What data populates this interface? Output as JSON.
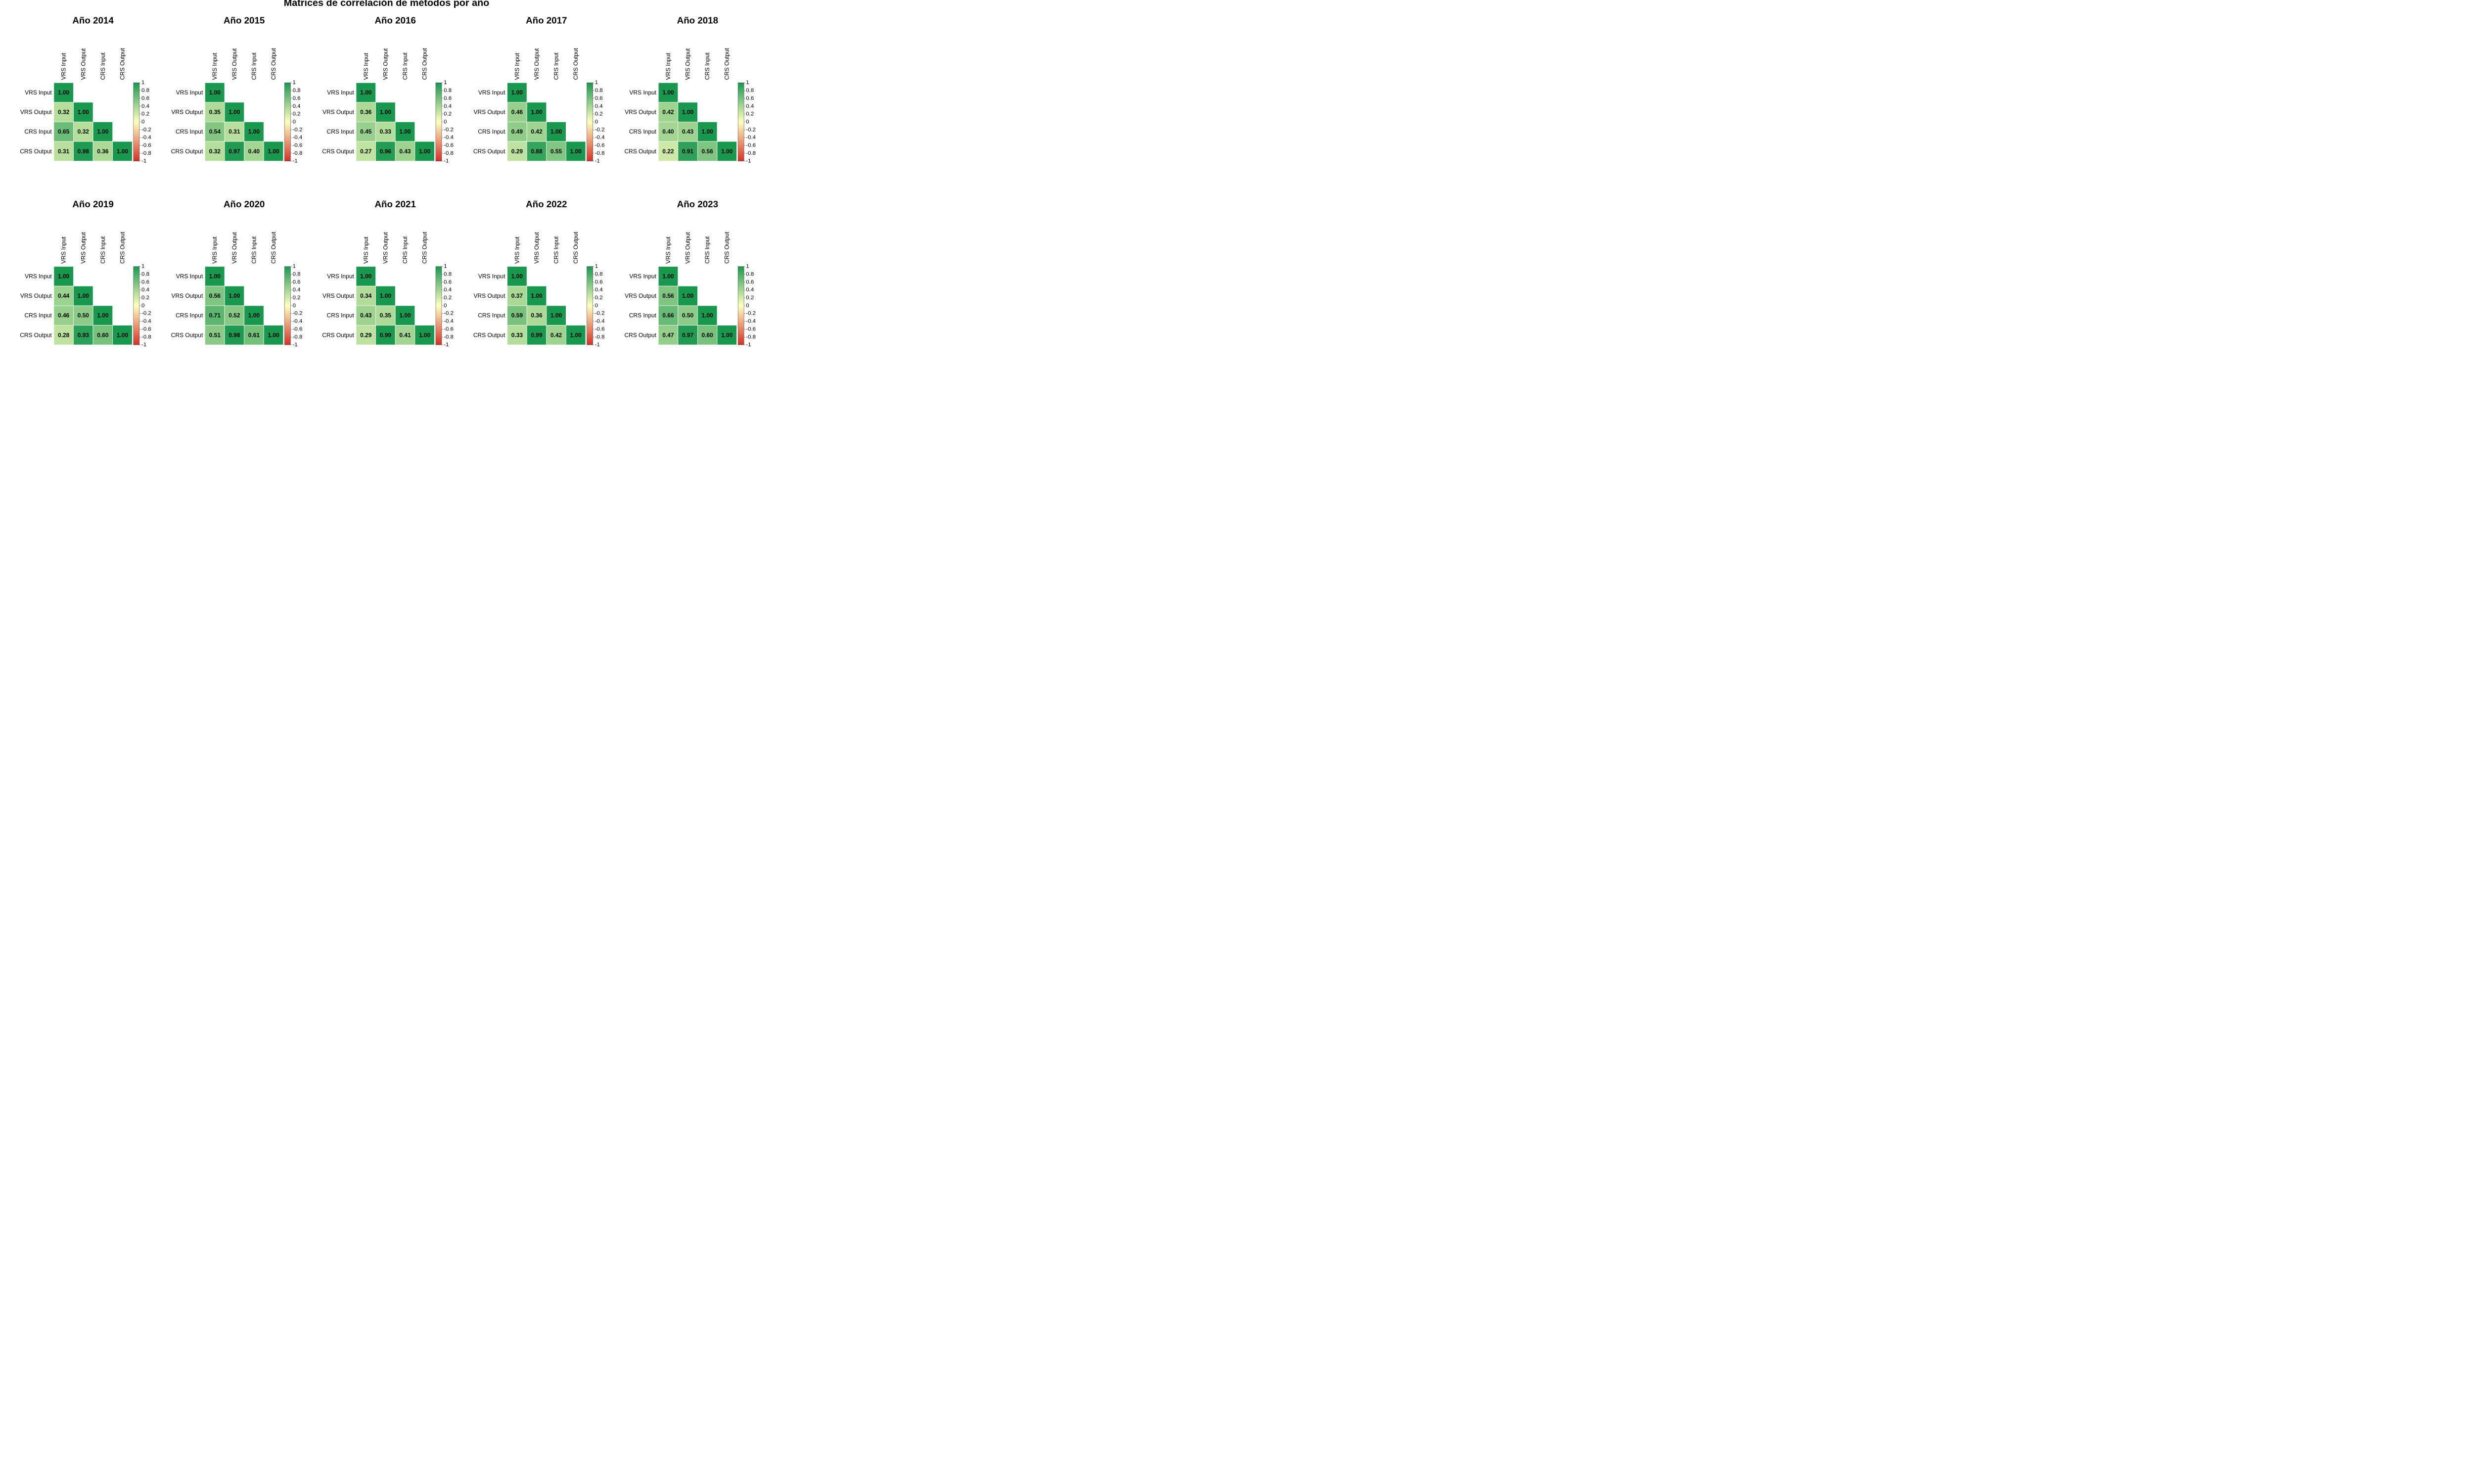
{
  "title": "Matrices de correlación de métodos por año",
  "labels": [
    "VRS Input",
    "VRS Output",
    "CRS Input",
    "CRS Output"
  ],
  "colorbar_ticks": [
    "1",
    "0.8",
    "0.6",
    "0.4",
    "0.2",
    "0",
    "-0.2",
    "-0.4",
    "-0.6",
    "-0.8",
    "-1"
  ],
  "colors": {
    "negative": "#D73027",
    "neutral": "#FFFFBF",
    "positive": "#1A9850",
    "text": "#000000"
  },
  "chart_data": [
    {
      "type": "heatmap",
      "title": "Año 2014",
      "matrix": [
        [
          1.0
        ],
        [
          0.32,
          1.0
        ],
        [
          0.65,
          0.32,
          1.0
        ],
        [
          0.31,
          0.98,
          0.36,
          1.0
        ]
      ],
      "range": [
        -1,
        1
      ]
    },
    {
      "type": "heatmap",
      "title": "Año 2015",
      "matrix": [
        [
          1.0
        ],
        [
          0.35,
          1.0
        ],
        [
          0.54,
          0.31,
          1.0
        ],
        [
          0.32,
          0.97,
          0.4,
          1.0
        ]
      ],
      "range": [
        -1,
        1
      ]
    },
    {
      "type": "heatmap",
      "title": "Año 2016",
      "matrix": [
        [
          1.0
        ],
        [
          0.36,
          1.0
        ],
        [
          0.45,
          0.33,
          1.0
        ],
        [
          0.27,
          0.96,
          0.43,
          1.0
        ]
      ],
      "range": [
        -1,
        1
      ]
    },
    {
      "type": "heatmap",
      "title": "Año 2017",
      "matrix": [
        [
          1.0
        ],
        [
          0.46,
          1.0
        ],
        [
          0.49,
          0.42,
          1.0
        ],
        [
          0.29,
          0.88,
          0.55,
          1.0
        ]
      ],
      "range": [
        -1,
        1
      ]
    },
    {
      "type": "heatmap",
      "title": "Año 2018",
      "matrix": [
        [
          1.0
        ],
        [
          0.42,
          1.0
        ],
        [
          0.4,
          0.43,
          1.0
        ],
        [
          0.22,
          0.91,
          0.56,
          1.0
        ]
      ],
      "range": [
        -1,
        1
      ]
    },
    {
      "type": "heatmap",
      "title": "Año 2019",
      "matrix": [
        [
          1.0
        ],
        [
          0.44,
          1.0
        ],
        [
          0.46,
          0.5,
          1.0
        ],
        [
          0.28,
          0.93,
          0.6,
          1.0
        ]
      ],
      "range": [
        -1,
        1
      ]
    },
    {
      "type": "heatmap",
      "title": "Año 2020",
      "matrix": [
        [
          1.0
        ],
        [
          0.56,
          1.0
        ],
        [
          0.71,
          0.52,
          1.0
        ],
        [
          0.51,
          0.98,
          0.61,
          1.0
        ]
      ],
      "range": [
        -1,
        1
      ]
    },
    {
      "type": "heatmap",
      "title": "Año 2021",
      "matrix": [
        [
          1.0
        ],
        [
          0.34,
          1.0
        ],
        [
          0.43,
          0.35,
          1.0
        ],
        [
          0.29,
          0.99,
          0.41,
          1.0
        ]
      ],
      "range": [
        -1,
        1
      ]
    },
    {
      "type": "heatmap",
      "title": "Año 2022",
      "matrix": [
        [
          1.0
        ],
        [
          0.37,
          1.0
        ],
        [
          0.59,
          0.36,
          1.0
        ],
        [
          0.33,
          0.99,
          0.42,
          1.0
        ]
      ],
      "range": [
        -1,
        1
      ]
    },
    {
      "type": "heatmap",
      "title": "Año 2023",
      "matrix": [
        [
          1.0
        ],
        [
          0.56,
          1.0
        ],
        [
          0.66,
          0.5,
          1.0
        ],
        [
          0.47,
          0.97,
          0.6,
          1.0
        ]
      ],
      "range": [
        -1,
        1
      ]
    }
  ]
}
